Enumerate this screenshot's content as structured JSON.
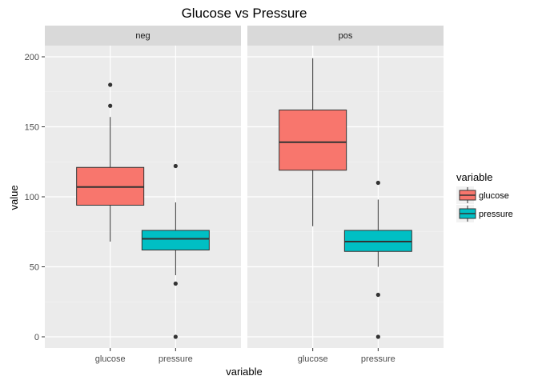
{
  "chart_data": {
    "type": "boxplot",
    "title": "Glucose vs Pressure",
    "xlabel": "variable",
    "ylabel": "value",
    "ylim": [
      -8,
      208
    ],
    "yticks": [
      0,
      50,
      100,
      150,
      200
    ],
    "categories": [
      "glucose",
      "pressure"
    ],
    "legend": {
      "title": "variable",
      "position": "right",
      "items": [
        {
          "label": "glucose",
          "color": "#F8766D"
        },
        {
          "label": "pressure",
          "color": "#00BFC4"
        }
      ]
    },
    "panels": [
      {
        "label": "neg",
        "boxes": [
          {
            "category": "glucose",
            "whisker_low": 68,
            "q1": 94,
            "median": 107,
            "q3": 121,
            "whisker_high": 157,
            "outliers": [
              165,
              180
            ]
          },
          {
            "category": "pressure",
            "whisker_low": 44,
            "q1": 62,
            "median": 70,
            "q3": 76,
            "whisker_high": 96,
            "outliers": [
              122,
              38,
              0
            ]
          }
        ]
      },
      {
        "label": "pos",
        "boxes": [
          {
            "category": "glucose",
            "whisker_low": 79,
            "q1": 119,
            "median": 139,
            "q3": 162,
            "whisker_high": 199,
            "outliers": []
          },
          {
            "category": "pressure",
            "whisker_low": 50,
            "q1": 61,
            "median": 68,
            "q3": 76,
            "whisker_high": 98,
            "outliers": [
              110,
              30,
              0
            ]
          }
        ]
      }
    ]
  }
}
